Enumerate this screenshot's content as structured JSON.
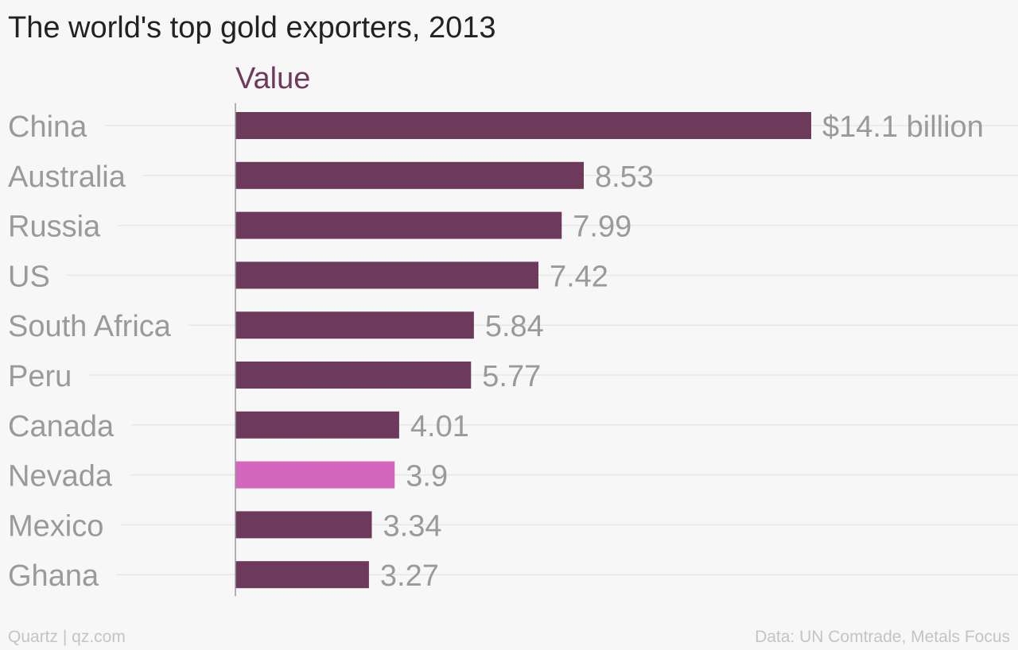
{
  "title": "The world's top gold exporters, 2013",
  "footer": {
    "brand": "Quartz | qz.com",
    "source": "Data: UN Comtrade, Metals Focus"
  },
  "colors": {
    "bar": "#6e3a5c",
    "highlight": "#d466bd",
    "category_label": "#9a9a9a",
    "value_label": "#9a9a9a",
    "series_label": "#6e3a5c",
    "gridline": "#e7e7e7",
    "axis": "#9a9a9a"
  },
  "chart_data": {
    "type": "bar",
    "orientation": "horizontal",
    "title": "The world's top gold exporters, 2013",
    "categories": [
      "China",
      "Australia",
      "Russia",
      "US",
      "South Africa",
      "Peru",
      "Canada",
      "Nevada",
      "Mexico",
      "Ghana"
    ],
    "series": [
      {
        "name": "Value",
        "values": [
          14.1,
          8.53,
          7.99,
          7.42,
          5.84,
          5.77,
          4.01,
          3.9,
          3.34,
          3.27
        ]
      }
    ],
    "value_labels": [
      "$14.1 billion",
      "8.53",
      "7.99",
      "7.42",
      "5.84",
      "5.77",
      "4.01",
      "3.9",
      "3.34",
      "3.27"
    ],
    "highlighted_category": "Nevada",
    "xlim": [
      0,
      15.03
    ],
    "grid": true,
    "legend": "top"
  }
}
